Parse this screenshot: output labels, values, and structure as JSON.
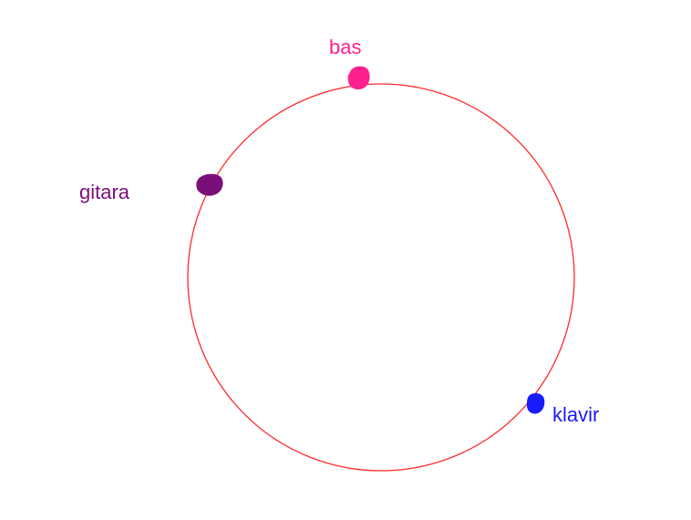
{
  "diagram": {
    "circle_color": "#ff2a2a",
    "points": [
      {
        "id": "bas",
        "label": "bas",
        "color": "#ff1f8f"
      },
      {
        "id": "gitara",
        "label": "gitara",
        "color": "#7a0f7a"
      },
      {
        "id": "klavir",
        "label": "klavir",
        "color": "#1a1aff"
      }
    ]
  }
}
